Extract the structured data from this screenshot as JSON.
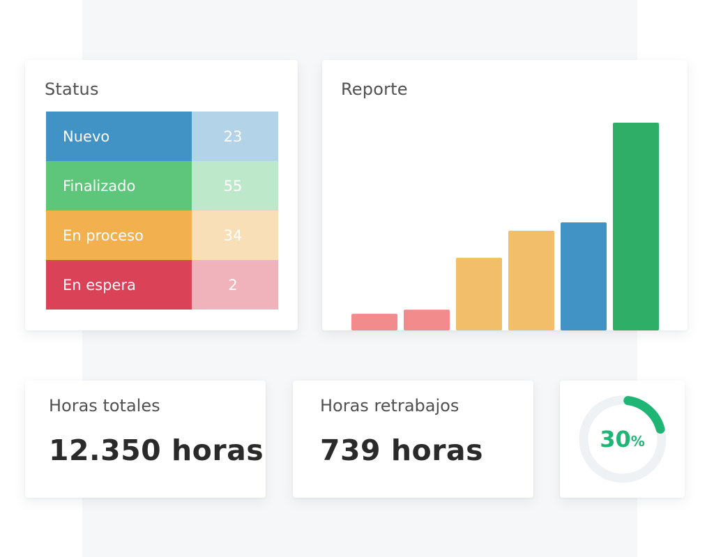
{
  "status": {
    "title": "Status",
    "rows": [
      {
        "label": "Nuevo",
        "value": "23",
        "label_color": "#4293c5",
        "value_color": "#b3d3e9"
      },
      {
        "label": "Finalizado",
        "value": "55",
        "label_color": "#5ec67b",
        "value_color": "#bde8c9"
      },
      {
        "label": "En proceso",
        "value": "34",
        "label_color": "#f2b04f",
        "value_color": "#f9dfb8"
      },
      {
        "label": "En espera",
        "value": "2",
        "label_color": "#d94257",
        "value_color": "#f0b3bb"
      }
    ]
  },
  "report": {
    "title": "Reporte",
    "chart_data": {
      "type": "bar",
      "categories": [
        "",
        "",
        "",
        "",
        "",
        ""
      ],
      "values": [
        8,
        10,
        35,
        48,
        52,
        100
      ],
      "colors": [
        "#f28b8b",
        "#f28b8b",
        "#f2be6a",
        "#f2be6a",
        "#4293c5",
        "#2fae67"
      ],
      "ylim": [
        0,
        100
      ],
      "grid": false,
      "title": "",
      "xlabel": "",
      "ylabel": ""
    }
  },
  "metrics": {
    "total_hours": {
      "title": "Horas totales",
      "value": "12.350 horas"
    },
    "rework_hours": {
      "title": "Horas retrabajos",
      "value": "739 horas"
    },
    "progress": {
      "number": "30",
      "suffix": "%",
      "fraction": 0.3,
      "color": "#1fb574",
      "track_color": "#eef2f5"
    }
  }
}
